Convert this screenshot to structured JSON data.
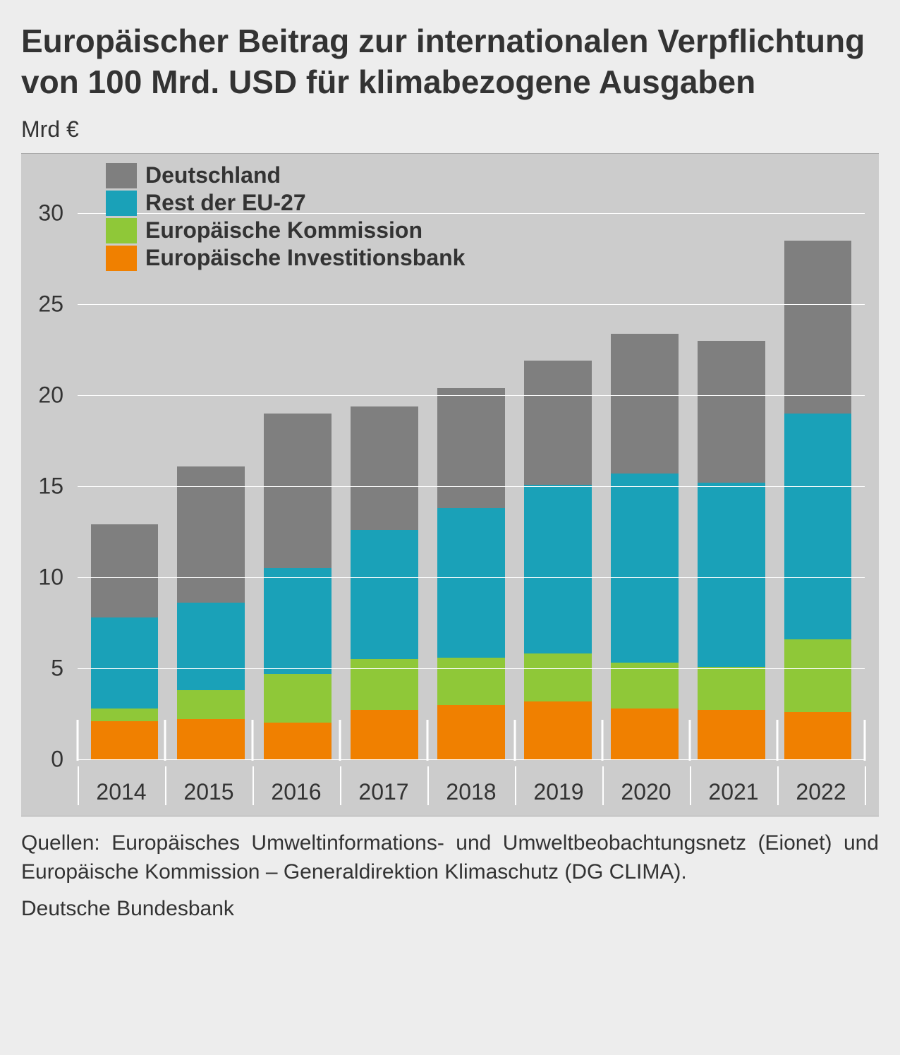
{
  "title": "Europäischer Beitrag zur internationalen Verpflichtung von 100 Mrd. USD für klimabezogene Ausgaben",
  "unit": "Mrd €",
  "chart": {
    "type": "stacked-bar",
    "background_color": "#cccccc",
    "grid_color": "#ffffff",
    "ylim": [
      0,
      32.5
    ],
    "yticks": [
      0,
      5,
      10,
      15,
      20,
      25,
      30
    ],
    "categories": [
      "2014",
      "2015",
      "2016",
      "2017",
      "2018",
      "2019",
      "2020",
      "2021",
      "2022"
    ],
    "series": [
      {
        "key": "eib",
        "label": "Europäische Investitionsbank",
        "color": "#f08000",
        "values": [
          2.1,
          2.2,
          2.0,
          2.7,
          3.0,
          3.2,
          2.8,
          2.7,
          2.6
        ]
      },
      {
        "key": "ek",
        "label": "Europäische Kommission",
        "color": "#8fc838",
        "values": [
          0.7,
          1.6,
          2.7,
          2.8,
          2.6,
          2.6,
          2.5,
          2.4,
          4.0
        ]
      },
      {
        "key": "rest",
        "label": "Rest der EU-27",
        "color": "#1aa1b8",
        "values": [
          5.0,
          4.8,
          5.8,
          7.1,
          8.2,
          9.3,
          10.4,
          10.1,
          12.4
        ]
      },
      {
        "key": "de",
        "label": "Deutschland",
        "color": "#7f7f7f",
        "values": [
          5.1,
          7.5,
          8.5,
          6.8,
          6.6,
          6.8,
          7.7,
          7.8,
          9.5
        ]
      }
    ],
    "legend_order": [
      "de",
      "rest",
      "ek",
      "eib"
    ],
    "axis_fontsize": 32,
    "legend_fontsize": 32,
    "bar_width_ratio": 0.78
  },
  "footnote": "Quellen: Europäisches Umweltinformations- und Umweltbeobachtungsnetz (Eionet) und Europäische Kommission – Generaldirektion Klimaschutz (DG CLIMA).",
  "attribution": "Deutsche Bundesbank"
}
